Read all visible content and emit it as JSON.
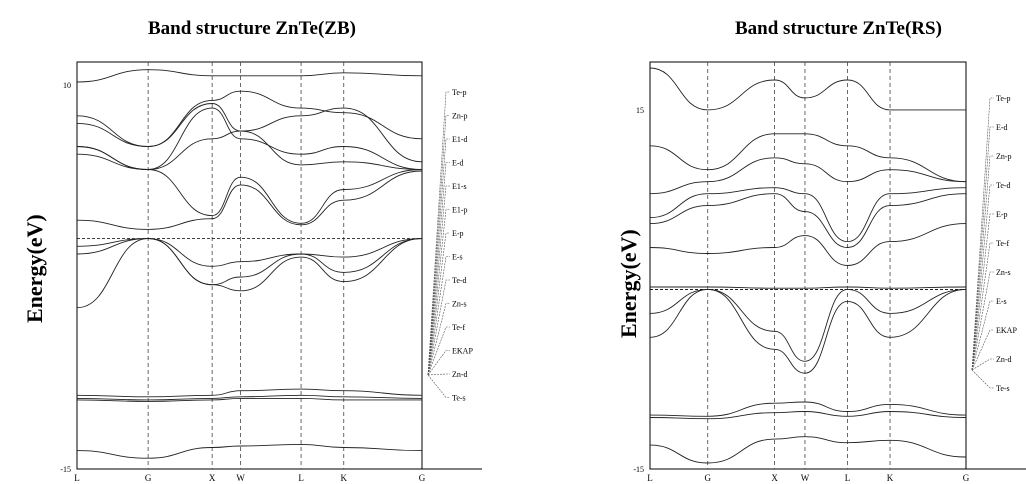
{
  "chart_data": [
    {
      "type": "line",
      "title": "Band structure ZnTe(ZB)",
      "ylabel": "Energy(eV)",
      "ylim": [
        -15,
        11.5
      ],
      "ytick_labels": [
        "10",
        "-15"
      ],
      "yticks": [
        10,
        -15
      ],
      "kpoints": [
        "L",
        "G",
        "X",
        "W",
        "L",
        "K",
        "G"
      ],
      "kpos": [
        0,
        1.0,
        1.9,
        2.3,
        3.15,
        3.75,
        4.85
      ],
      "fermi": 0,
      "legend": [
        "Te-p",
        "Zn-p",
        "E1-d",
        "E-d",
        "E1-s",
        "E1-p",
        "E-p",
        "E-s",
        "Te-d",
        "Zn-s",
        "Te-f",
        "EKAP",
        "Zn-d",
        "Te-s"
      ],
      "series": [
        {
          "values": [
            10.2,
            11.0,
            10.6,
            10.6,
            10.6,
            10.8,
            10.6
          ]
        },
        {
          "values": [
            8.0,
            6.0,
            9.0,
            9.6,
            8.5,
            8.2,
            6.5
          ]
        },
        {
          "values": [
            7.5,
            6.0,
            8.8,
            7.0,
            8.0,
            8.5,
            5.0
          ]
        },
        {
          "values": [
            6.0,
            4.5,
            8.5,
            6.5,
            5.5,
            6.0,
            4.5
          ]
        },
        {
          "values": [
            6.0,
            4.5,
            6.5,
            7.0,
            4.8,
            5.0,
            4.5
          ]
        },
        {
          "values": [
            5.5,
            4.5,
            1.5,
            4.0,
            1.0,
            3.2,
            4.5
          ]
        },
        {
          "values": [
            1.2,
            0.6,
            1.3,
            3.5,
            0.9,
            2.5,
            4.4
          ]
        },
        {
          "values": [
            -0.5,
            0,
            -1.8,
            -1.5,
            -1.0,
            -1.2,
            0
          ]
        },
        {
          "values": [
            -1.0,
            0,
            -3.0,
            -2.5,
            -1.0,
            -2.2,
            0
          ]
        },
        {
          "values": [
            -4.5,
            0,
            -3.0,
            -3.4,
            -1.2,
            -2.8,
            0
          ]
        },
        {
          "values": [
            -10.2,
            -10.3,
            -10.2,
            -9.9,
            -9.8,
            -9.9,
            -10.2
          ]
        },
        {
          "values": [
            -10.4,
            -10.5,
            -10.4,
            -10.3,
            -10.2,
            -10.3,
            -10.4
          ]
        },
        {
          "values": [
            -10.5,
            -10.6,
            -10.5,
            -10.4,
            -10.4,
            -10.5,
            -10.5
          ]
        },
        {
          "values": [
            -13.8,
            -14.3,
            -13.6,
            -13.5,
            -13.4,
            -13.6,
            -13.8
          ]
        }
      ]
    },
    {
      "type": "line",
      "title": "Band structure ZnTe(RS)",
      "ylabel": "Energy(eV)",
      "ylim": [
        -15,
        19
      ],
      "ytick_labels": [
        "15",
        "-15"
      ],
      "yticks": [
        15,
        -15
      ],
      "kpoints": [
        "L",
        "G",
        "X",
        "W",
        "L",
        "K",
        "G"
      ],
      "kpos": [
        0,
        0.95,
        2.05,
        2.55,
        3.25,
        3.95,
        5.2
      ],
      "fermi": 0,
      "legend": [
        "Te-p",
        "E-d",
        "Zn-p",
        "Te-d",
        "E-p",
        "Te-f",
        "Zn-s",
        "E-s",
        "EKAP",
        "Zn-d",
        "Te-s"
      ],
      "series": [
        {
          "values": [
            18.5,
            15.0,
            17.5,
            16.0,
            17.5,
            15.0,
            15.0
          ]
        },
        {
          "values": [
            12.0,
            10.0,
            13.0,
            13.0,
            12.0,
            11.0,
            9.0
          ]
        },
        {
          "values": [
            8.0,
            9.0,
            11.0,
            10.5,
            9.0,
            10.0,
            9.0
          ]
        },
        {
          "values": [
            6.0,
            8.0,
            8.5,
            8.0,
            4.0,
            8.0,
            8.5
          ]
        },
        {
          "values": [
            5.5,
            7.0,
            8.0,
            6.5,
            3.5,
            7.0,
            8.0
          ]
        },
        {
          "values": [
            3.5,
            3.0,
            3.5,
            4.5,
            2.0,
            4.0,
            5.5
          ]
        },
        {
          "values": [
            0.2,
            0.2,
            0.1,
            0.1,
            0.2,
            0.1,
            0.2
          ]
        },
        {
          "values": [
            -2.0,
            0,
            -3.5,
            -6.0,
            0,
            -2.0,
            0
          ]
        },
        {
          "values": [
            -4.0,
            0,
            -5.0,
            -7.0,
            -1.0,
            -4.0,
            0
          ]
        },
        {
          "values": [
            -10.5,
            -10.6,
            -9.5,
            -9.4,
            -10.2,
            -9.6,
            -10.5
          ]
        },
        {
          "values": [
            -10.7,
            -10.8,
            -10.3,
            -10.2,
            -10.6,
            -10.2,
            -10.7
          ]
        },
        {
          "values": [
            -13.0,
            -14.5,
            -12.5,
            -12.3,
            -12.8,
            -12.6,
            -14.0
          ]
        }
      ]
    }
  ]
}
